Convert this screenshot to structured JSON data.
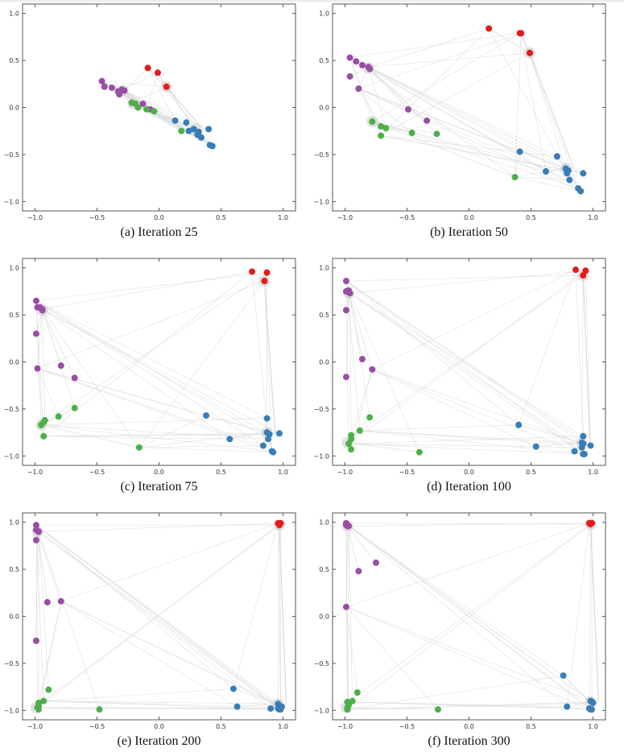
{
  "figure": {
    "colors": {
      "purple": "#984ea3",
      "green": "#4daf4a",
      "blue": "#377eb8",
      "red": "#e41a1c",
      "edge": "#d9d9d9",
      "halo": "#cccccc",
      "frame": "#555555"
    }
  },
  "chart_data": [
    {
      "type": "scatter",
      "title": "(a) Iteration 25",
      "xlim": [
        -1.1,
        1.1
      ],
      "ylim": [
        -1.1,
        1.1
      ],
      "xticks": [
        "-1.0",
        "-0.5",
        "0.0",
        "0.5",
        "1.0"
      ],
      "yticks": [
        "1.0",
        "0.5",
        "0.0",
        "-0.5",
        "-1.0"
      ],
      "grid": false,
      "series": [
        {
          "name": "purple",
          "points": [
            [
              -0.46,
              0.28
            ],
            [
              -0.44,
              0.22
            ],
            [
              -0.38,
              0.21
            ],
            [
              -0.33,
              0.17
            ],
            [
              -0.32,
              0.14
            ],
            [
              -0.3,
              0.19
            ],
            [
              -0.28,
              0.18
            ],
            [
              -0.13,
              0.04
            ],
            [
              -0.07,
              -0.02
            ]
          ],
          "halo": [
            -0.29,
            0.18
          ]
        },
        {
          "name": "green",
          "points": [
            [
              -0.22,
              0.05
            ],
            [
              -0.19,
              0.04
            ],
            [
              -0.17,
              0.0
            ],
            [
              -0.1,
              -0.02
            ],
            [
              -0.04,
              -0.04
            ],
            [
              0.18,
              -0.25
            ]
          ],
          "halo": [
            -0.21,
            0.04
          ]
        },
        {
          "name": "blue",
          "points": [
            [
              0.13,
              -0.14
            ],
            [
              0.22,
              -0.16
            ],
            [
              0.24,
              -0.25
            ],
            [
              0.28,
              -0.23
            ],
            [
              0.31,
              -0.29
            ],
            [
              0.32,
              -0.26
            ],
            [
              0.34,
              -0.32
            ],
            [
              0.4,
              -0.23
            ],
            [
              0.41,
              -0.4
            ],
            [
              0.43,
              -0.41
            ]
          ],
          "halo": [
            0.29,
            -0.23
          ]
        },
        {
          "name": "red",
          "points": [
            [
              -0.09,
              0.42
            ],
            [
              -0.01,
              0.37
            ],
            [
              0.06,
              0.22
            ]
          ],
          "halo": [
            0.06,
            0.22
          ]
        }
      ]
    },
    {
      "type": "scatter",
      "title": "(b) Iteration 50",
      "xlim": [
        -1.1,
        1.1
      ],
      "ylim": [
        -1.1,
        1.1
      ],
      "xticks": [
        "-1.0",
        "-0.5",
        "0.0",
        "0.5",
        "1.0"
      ],
      "yticks": [
        "1.0",
        "0.5",
        "0.0",
        "-0.5",
        "-1.0"
      ],
      "grid": false,
      "series": [
        {
          "name": "purple",
          "points": [
            [
              -0.96,
              0.53
            ],
            [
              -0.91,
              0.49
            ],
            [
              -0.86,
              0.45
            ],
            [
              -0.81,
              0.43
            ],
            [
              -0.8,
              0.41
            ],
            [
              -0.96,
              0.33
            ],
            [
              -0.89,
              0.2
            ],
            [
              -0.49,
              -0.02
            ],
            [
              -0.34,
              -0.14
            ]
          ],
          "halo": [
            -0.81,
            0.42
          ]
        },
        {
          "name": "green",
          "points": [
            [
              -0.78,
              -0.15
            ],
            [
              -0.71,
              -0.2
            ],
            [
              -0.67,
              -0.22
            ],
            [
              -0.71,
              -0.3
            ],
            [
              -0.46,
              -0.27
            ],
            [
              -0.26,
              -0.28
            ],
            [
              0.37,
              -0.74
            ]
          ],
          "halo": [
            -0.78,
            -0.15
          ]
        },
        {
          "name": "blue",
          "points": [
            [
              0.41,
              -0.47
            ],
            [
              0.71,
              -0.52
            ],
            [
              0.62,
              -0.68
            ],
            [
              0.78,
              -0.65
            ],
            [
              0.8,
              -0.67
            ],
            [
              0.79,
              -0.7
            ],
            [
              0.81,
              -0.77
            ],
            [
              0.92,
              -0.7
            ],
            [
              0.88,
              -0.86
            ],
            [
              0.9,
              -0.89
            ]
          ],
          "halo": [
            0.78,
            -0.65
          ]
        },
        {
          "name": "red",
          "points": [
            [
              0.16,
              0.84
            ],
            [
              0.41,
              0.79
            ],
            [
              0.42,
              0.79
            ],
            [
              0.49,
              0.58
            ]
          ],
          "halo": [
            0.49,
            0.58
          ]
        }
      ]
    },
    {
      "type": "scatter",
      "title": "(c) Iteration 75",
      "xlim": [
        -1.1,
        1.1
      ],
      "ylim": [
        -1.1,
        1.1
      ],
      "xticks": [
        "-1.0",
        "-0.5",
        "0.0",
        "0.5",
        "1.0"
      ],
      "yticks": [
        "1.0",
        "0.5",
        "0.0",
        "-0.5",
        "-1.0"
      ],
      "grid": false,
      "series": [
        {
          "name": "purple",
          "points": [
            [
              -0.99,
              0.65
            ],
            [
              -0.98,
              0.58
            ],
            [
              -0.96,
              0.58
            ],
            [
              -0.94,
              0.56
            ],
            [
              -0.94,
              0.55
            ],
            [
              -0.99,
              0.3
            ],
            [
              -0.98,
              -0.07
            ],
            [
              -0.79,
              -0.04
            ],
            [
              -0.68,
              -0.17
            ]
          ],
          "halo": [
            -0.94,
            0.55
          ]
        },
        {
          "name": "green",
          "points": [
            [
              -0.95,
              -0.67
            ],
            [
              -0.93,
              -0.64
            ],
            [
              -0.92,
              -0.62
            ],
            [
              -0.93,
              -0.79
            ],
            [
              -0.81,
              -0.58
            ],
            [
              -0.68,
              -0.49
            ],
            [
              -0.16,
              -0.91
            ]
          ],
          "halo": [
            -0.95,
            -0.67
          ]
        },
        {
          "name": "blue",
          "points": [
            [
              0.38,
              -0.57
            ],
            [
              0.57,
              -0.82
            ],
            [
              0.87,
              -0.6
            ],
            [
              0.87,
              -0.75
            ],
            [
              0.89,
              -0.77
            ],
            [
              0.88,
              -0.82
            ],
            [
              0.84,
              -0.89
            ],
            [
              0.97,
              -0.76
            ],
            [
              0.91,
              -0.95
            ],
            [
              0.92,
              -0.96
            ]
          ],
          "halo": [
            0.87,
            -0.75
          ]
        },
        {
          "name": "red",
          "points": [
            [
              0.75,
              0.96
            ],
            [
              0.87,
              0.95
            ],
            [
              0.85,
              0.86
            ]
          ],
          "halo": [
            0.85,
            0.86
          ]
        }
      ]
    },
    {
      "type": "scatter",
      "title": "(d) Iteration 100",
      "xlim": [
        -1.1,
        1.1
      ],
      "ylim": [
        -1.1,
        1.1
      ],
      "xticks": [
        "-1.0",
        "-0.5",
        "0.0",
        "0.5",
        "1.0"
      ],
      "yticks": [
        "1.0",
        "0.5",
        "0.0",
        "-0.5",
        "-1.0"
      ],
      "grid": false,
      "series": [
        {
          "name": "purple",
          "points": [
            [
              -0.99,
              0.86
            ],
            [
              -0.99,
              0.75
            ],
            [
              -0.97,
              0.76
            ],
            [
              -0.96,
              0.73
            ],
            [
              -0.99,
              0.55
            ],
            [
              -0.86,
              0.03
            ],
            [
              -0.78,
              -0.08
            ],
            [
              -0.99,
              -0.16
            ]
          ],
          "halo": [
            -0.97,
            0.73
          ]
        },
        {
          "name": "green",
          "points": [
            [
              -0.8,
              -0.59
            ],
            [
              -0.88,
              -0.73
            ],
            [
              -0.95,
              -0.78
            ],
            [
              -0.95,
              -0.82
            ],
            [
              -0.97,
              -0.87
            ],
            [
              -0.95,
              -0.93
            ],
            [
              -0.4,
              -0.96
            ]
          ],
          "halo": [
            -0.98,
            -0.86
          ]
        },
        {
          "name": "blue",
          "points": [
            [
              0.4,
              -0.67
            ],
            [
              0.54,
              -0.9
            ],
            [
              0.92,
              -0.79
            ],
            [
              0.91,
              -0.86
            ],
            [
              0.92,
              -0.87
            ],
            [
              0.91,
              -0.91
            ],
            [
              0.98,
              -0.89
            ],
            [
              0.85,
              -0.95
            ],
            [
              0.92,
              -0.98
            ],
            [
              0.93,
              -0.98
            ]
          ],
          "halo": [
            0.91,
            -0.86
          ]
        },
        {
          "name": "red",
          "points": [
            [
              0.86,
              0.98
            ],
            [
              0.94,
              0.97
            ],
            [
              0.92,
              0.92
            ]
          ],
          "halo": [
            0.92,
            0.92
          ]
        }
      ]
    },
    {
      "type": "scatter",
      "title": "(e) Iteration 200",
      "xlim": [
        -1.1,
        1.1
      ],
      "ylim": [
        -1.1,
        1.1
      ],
      "xticks": [
        "-1.0",
        "-0.5",
        "0.0",
        "0.5",
        "1.0"
      ],
      "yticks": [
        "1.0",
        "0.5",
        "0.0",
        "-0.5",
        "-1.0"
      ],
      "grid": false,
      "series": [
        {
          "name": "purple",
          "points": [
            [
              -0.99,
              0.97
            ],
            [
              -0.99,
              0.92
            ],
            [
              -0.98,
              0.91
            ],
            [
              -0.97,
              0.9
            ],
            [
              -0.99,
              0.81
            ],
            [
              -0.9,
              0.15
            ],
            [
              -0.79,
              0.16
            ],
            [
              -0.99,
              -0.26
            ]
          ],
          "halo": [
            -0.98,
            0.9
          ]
        },
        {
          "name": "green",
          "points": [
            [
              -0.89,
              -0.78
            ],
            [
              -0.93,
              -0.9
            ],
            [
              -0.97,
              -0.92
            ],
            [
              -0.97,
              -0.95
            ],
            [
              -0.98,
              -0.97
            ],
            [
              -0.97,
              -0.99
            ],
            [
              -0.48,
              -0.99
            ]
          ],
          "halo": [
            -0.99,
            -0.97
          ]
        },
        {
          "name": "blue",
          "points": [
            [
              0.6,
              -0.77
            ],
            [
              0.63,
              -0.96
            ],
            [
              0.9,
              -0.98
            ],
            [
              0.96,
              -0.93
            ],
            [
              0.97,
              -0.95
            ],
            [
              0.96,
              -0.98
            ],
            [
              0.98,
              -0.97
            ],
            [
              0.99,
              -0.96
            ],
            [
              0.97,
              -0.99
            ],
            [
              0.98,
              -0.99
            ]
          ],
          "halo": [
            0.96,
            -0.93
          ]
        },
        {
          "name": "red",
          "points": [
            [
              0.96,
              0.99
            ],
            [
              0.98,
              0.99
            ],
            [
              0.97,
              0.97
            ]
          ],
          "halo": [
            0.97,
            0.97
          ]
        }
      ]
    },
    {
      "type": "scatter",
      "title": "(f) Iteration 300",
      "xlim": [
        -1.1,
        1.1
      ],
      "ylim": [
        -1.1,
        1.1
      ],
      "xticks": [
        "-1.0",
        "-0.5",
        "0.0",
        "0.5",
        "1.0"
      ],
      "yticks": [
        "1.0",
        "0.5",
        "0.0",
        "-0.5",
        "-1.0"
      ],
      "grid": false,
      "series": [
        {
          "name": "purple",
          "points": [
            [
              -0.99,
              0.99
            ],
            [
              -0.99,
              0.97
            ],
            [
              -0.98,
              0.96
            ],
            [
              -0.97,
              0.96
            ],
            [
              -0.89,
              0.48
            ],
            [
              -0.75,
              0.57
            ],
            [
              -0.99,
              0.1
            ]
          ],
          "halo": [
            -0.98,
            0.96
          ]
        },
        {
          "name": "green",
          "points": [
            [
              -0.9,
              -0.81
            ],
            [
              -0.94,
              -0.9
            ],
            [
              -0.98,
              -0.91
            ],
            [
              -0.97,
              -0.94
            ],
            [
              -0.98,
              -0.97
            ],
            [
              -0.98,
              -0.99
            ],
            [
              -0.25,
              -0.99
            ]
          ],
          "halo": [
            -0.99,
            -0.97
          ]
        },
        {
          "name": "blue",
          "points": [
            [
              0.76,
              -0.63
            ],
            [
              0.79,
              -0.96
            ],
            [
              0.98,
              -0.9
            ],
            [
              0.99,
              -0.91
            ],
            [
              0.97,
              -0.98
            ],
            [
              0.98,
              -0.99
            ],
            [
              1.0,
              -0.92
            ],
            [
              0.99,
              -0.99
            ]
          ],
          "halo": [
            0.98,
            -0.91
          ]
        },
        {
          "name": "red",
          "points": [
            [
              0.97,
              0.99
            ],
            [
              0.99,
              0.99
            ],
            [
              0.98,
              0.98
            ]
          ],
          "halo": [
            0.98,
            0.98
          ]
        }
      ]
    }
  ]
}
